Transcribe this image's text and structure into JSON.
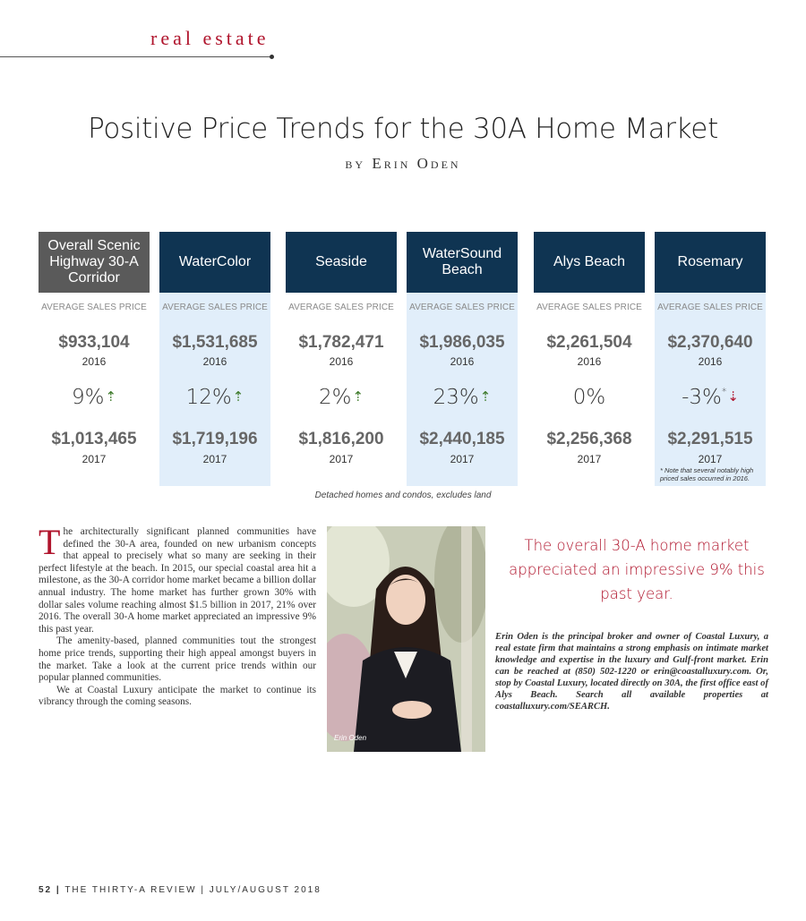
{
  "section": "real estate",
  "title": "Positive Price Trends for the 30A Home Market",
  "byline": "by Erin Oden",
  "colors": {
    "accent": "#b0142c",
    "header_dark": "#0f3452",
    "header_gray": "#5a5a5a",
    "highlight": "#e1eefa",
    "arrow_up": "#3d7a2a"
  },
  "columns": [
    {
      "name": "Overall Scenic Highway 30-A Corridor",
      "avg_label": "AVERAGE SALES PRICE",
      "price_2016": "$933,104",
      "year_2016": "2016",
      "change": "9%",
      "direction": "up",
      "price_2017": "$1,013,465",
      "year_2017": "2017"
    },
    {
      "name": "WaterColor",
      "avg_label": "AVERAGE SALES PRICE",
      "price_2016": "$1,531,685",
      "year_2016": "2016",
      "change": "12%",
      "direction": "up",
      "price_2017": "$1,719,196",
      "year_2017": "2017"
    },
    {
      "name": "Seaside",
      "avg_label": "AVERAGE SALES PRICE",
      "price_2016": "$1,782,471",
      "year_2016": "2016",
      "change": "2%",
      "direction": "up",
      "price_2017": "$1,816,200",
      "year_2017": "2017"
    },
    {
      "name": "WaterSound Beach",
      "avg_label": "AVERAGE SALES PRICE",
      "price_2016": "$1,986,035",
      "year_2016": "2016",
      "change": "23%",
      "direction": "up",
      "price_2017": "$2,440,185",
      "year_2017": "2017"
    },
    {
      "name": "Alys Beach",
      "avg_label": "AVERAGE SALES PRICE",
      "price_2016": "$2,261,504",
      "year_2016": "2016",
      "change": "0%",
      "direction": "none",
      "price_2017": "$2,256,368",
      "year_2017": "2017"
    },
    {
      "name": "Rosemary",
      "avg_label": "AVERAGE SALES PRICE",
      "price_2016": "$2,370,640",
      "year_2016": "2016",
      "change": "-3%",
      "direction": "down",
      "star": "*",
      "price_2017": "$2,291,515",
      "year_2017": "2017",
      "note": "* Note that several notably high priced sales occurred in 2016."
    }
  ],
  "table_caption": "Detached homes and condos, excludes land",
  "article": {
    "dropcap": "T",
    "p1": "he architecturally significant planned communities have defined the 30-A area, founded on new urbanism concepts that appeal to precisely what so many are seeking in their perfect lifestyle at the beach. In 2015, our special coastal area hit a milestone, as the 30-A corridor home market became a billion dollar annual industry. The home market has further grown 30% with dollar sales volume reaching almost $1.5 billion in 2017, 21% over 2016. The overall 30-A home market appreciated an impressive 9% this past year.",
    "p2": "The amenity-based, planned communities tout the strongest home price trends, supporting their high appeal amongst buyers in the market. Take a look at the current price trends within our popular planned communities.",
    "p3": "We at Coastal Luxury anticipate the market to continue its vibrancy through the coming seasons."
  },
  "photo_caption": "Erin Oden",
  "pull_quote": "The overall 30-A home market appreciated an impressive 9% this past year.",
  "bio": "Erin Oden is the principal broker and owner of Coastal Luxury, a real estate firm that maintains a strong emphasis on intimate market knowledge and expertise in the luxury and Gulf-front market. Erin can be reached at (850) 502-1220 or erin@coastalluxury.com. Or, stop by Coastal Luxury, located directly on 30A, the first office east of Alys Beach. Search all available properties at coastalluxury.com/SEARCH.",
  "footer": {
    "page": "52",
    "publication": "THE THIRTY-A REVIEW | JULY/AUGUST 2018"
  }
}
